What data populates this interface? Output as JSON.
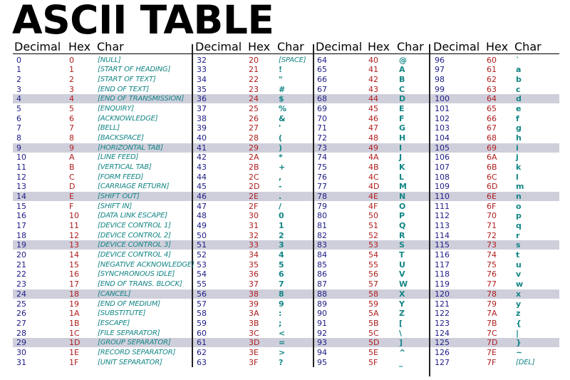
{
  "title": "ASCII TABLE",
  "headers": {
    "decimal": "Decimal",
    "hex": "Hex",
    "char": "Char"
  },
  "colors": {
    "decimal": "#1c1c86",
    "hex": "#b01c1c",
    "char": "#138585",
    "highlight": "#cfcfdc"
  },
  "columns": [
    {
      "rows": [
        [
          "0",
          "0",
          "[NULL]"
        ],
        [
          "1",
          "1",
          "[START OF HEADING]"
        ],
        [
          "2",
          "2",
          "[START OF TEXT]"
        ],
        [
          "3",
          "3",
          "[END OF TEXT]"
        ],
        [
          "4",
          "4",
          "[END OF TRANSMISSION]"
        ],
        [
          "5",
          "5",
          "[ENQUIRY]"
        ],
        [
          "6",
          "6",
          "[ACKNOWLEDGE]"
        ],
        [
          "7",
          "7",
          "[BELL]"
        ],
        [
          "8",
          "8",
          "[BACKSPACE]"
        ],
        [
          "9",
          "9",
          "[HORIZONTAL TAB]"
        ],
        [
          "10",
          "A",
          "[LINE FEED]"
        ],
        [
          "11",
          "B",
          "[VERTICAL TAB]"
        ],
        [
          "12",
          "C",
          "[FORM FEED]"
        ],
        [
          "13",
          "D",
          "[CARRIAGE RETURN]"
        ],
        [
          "14",
          "E",
          "[SHIFT OUT]"
        ],
        [
          "15",
          "F",
          "[SHIFT IN]"
        ],
        [
          "16",
          "10",
          "[DATA LINK ESCAPE]"
        ],
        [
          "17",
          "11",
          "[DEVICE CONTROL 1]"
        ],
        [
          "18",
          "12",
          "[DEVICE CONTROL 2]"
        ],
        [
          "19",
          "13",
          "[DEVICE CONTROL 3]"
        ],
        [
          "20",
          "14",
          "[DEVICE CONTROL 4]"
        ],
        [
          "21",
          "15",
          "[NEGATIVE ACKNOWLEDGE]"
        ],
        [
          "22",
          "16",
          "[SYNCHRONOUS IDLE]"
        ],
        [
          "23",
          "17",
          "[END OF TRANS. BLOCK]"
        ],
        [
          "24",
          "18",
          "[CANCEL]"
        ],
        [
          "25",
          "19",
          "[END OF MEDIUM]"
        ],
        [
          "26",
          "1A",
          "[SUBSTITUTE]"
        ],
        [
          "27",
          "1B",
          "[ESCAPE]"
        ],
        [
          "28",
          "1C",
          "[FILE SEPARATOR]"
        ],
        [
          "29",
          "1D",
          "[GROUP SEPARATOR]"
        ],
        [
          "30",
          "1E",
          "[RECORD SEPARATOR]"
        ],
        [
          "31",
          "1F",
          "[UNIT SEPARATOR]"
        ]
      ]
    },
    {
      "rows": [
        [
          "32",
          "20",
          "[SPACE]"
        ],
        [
          "33",
          "21",
          "!"
        ],
        [
          "34",
          "22",
          "\""
        ],
        [
          "35",
          "23",
          "#"
        ],
        [
          "36",
          "24",
          "$"
        ],
        [
          "37",
          "25",
          "%"
        ],
        [
          "38",
          "26",
          "&"
        ],
        [
          "39",
          "27",
          "'"
        ],
        [
          "40",
          "28",
          "("
        ],
        [
          "41",
          "29",
          ")"
        ],
        [
          "42",
          "2A",
          "*"
        ],
        [
          "43",
          "2B",
          "+"
        ],
        [
          "44",
          "2C",
          ","
        ],
        [
          "45",
          "2D",
          "-"
        ],
        [
          "46",
          "2E",
          "."
        ],
        [
          "47",
          "2F",
          "/"
        ],
        [
          "48",
          "30",
          "0"
        ],
        [
          "49",
          "31",
          "1"
        ],
        [
          "50",
          "32",
          "2"
        ],
        [
          "51",
          "33",
          "3"
        ],
        [
          "52",
          "34",
          "4"
        ],
        [
          "53",
          "35",
          "5"
        ],
        [
          "54",
          "36",
          "6"
        ],
        [
          "55",
          "37",
          "7"
        ],
        [
          "56",
          "38",
          "8"
        ],
        [
          "57",
          "39",
          "9"
        ],
        [
          "58",
          "3A",
          ":"
        ],
        [
          "59",
          "3B",
          ";"
        ],
        [
          "60",
          "3C",
          "<"
        ],
        [
          "61",
          "3D",
          "="
        ],
        [
          "62",
          "3E",
          ">"
        ],
        [
          "63",
          "3F",
          "?"
        ]
      ]
    },
    {
      "rows": [
        [
          "64",
          "40",
          "@"
        ],
        [
          "65",
          "41",
          "A"
        ],
        [
          "66",
          "42",
          "B"
        ],
        [
          "67",
          "43",
          "C"
        ],
        [
          "68",
          "44",
          "D"
        ],
        [
          "69",
          "45",
          "E"
        ],
        [
          "70",
          "46",
          "F"
        ],
        [
          "71",
          "47",
          "G"
        ],
        [
          "72",
          "48",
          "H"
        ],
        [
          "73",
          "49",
          "I"
        ],
        [
          "74",
          "4A",
          "J"
        ],
        [
          "75",
          "4B",
          "K"
        ],
        [
          "76",
          "4C",
          "L"
        ],
        [
          "77",
          "4D",
          "M"
        ],
        [
          "78",
          "4E",
          "N"
        ],
        [
          "79",
          "4F",
          "O"
        ],
        [
          "80",
          "50",
          "P"
        ],
        [
          "81",
          "51",
          "Q"
        ],
        [
          "82",
          "52",
          "R"
        ],
        [
          "83",
          "53",
          "S"
        ],
        [
          "84",
          "54",
          "T"
        ],
        [
          "85",
          "55",
          "U"
        ],
        [
          "86",
          "56",
          "V"
        ],
        [
          "87",
          "57",
          "W"
        ],
        [
          "88",
          "58",
          "X"
        ],
        [
          "89",
          "59",
          "Y"
        ],
        [
          "90",
          "5A",
          "Z"
        ],
        [
          "91",
          "5B",
          "["
        ],
        [
          "92",
          "5C",
          "\\"
        ],
        [
          "93",
          "5D",
          "]"
        ],
        [
          "94",
          "5E",
          "^"
        ],
        [
          "95",
          "5F",
          "_"
        ]
      ]
    },
    {
      "rows": [
        [
          "96",
          "60",
          "`"
        ],
        [
          "97",
          "61",
          "a"
        ],
        [
          "98",
          "62",
          "b"
        ],
        [
          "99",
          "63",
          "c"
        ],
        [
          "100",
          "64",
          "d"
        ],
        [
          "101",
          "65",
          "e"
        ],
        [
          "102",
          "66",
          "f"
        ],
        [
          "103",
          "67",
          "g"
        ],
        [
          "104",
          "68",
          "h"
        ],
        [
          "105",
          "69",
          "i"
        ],
        [
          "106",
          "6A",
          "j"
        ],
        [
          "107",
          "6B",
          "k"
        ],
        [
          "108",
          "6C",
          "l"
        ],
        [
          "109",
          "6D",
          "m"
        ],
        [
          "110",
          "6E",
          "n"
        ],
        [
          "111",
          "6F",
          "o"
        ],
        [
          "112",
          "70",
          "p"
        ],
        [
          "113",
          "71",
          "q"
        ],
        [
          "114",
          "72",
          "r"
        ],
        [
          "115",
          "73",
          "s"
        ],
        [
          "116",
          "74",
          "t"
        ],
        [
          "117",
          "75",
          "u"
        ],
        [
          "118",
          "76",
          "v"
        ],
        [
          "119",
          "77",
          "w"
        ],
        [
          "120",
          "78",
          "x"
        ],
        [
          "121",
          "79",
          "y"
        ],
        [
          "122",
          "7A",
          "z"
        ],
        [
          "123",
          "7B",
          "{"
        ],
        [
          "124",
          "7C",
          "|"
        ],
        [
          "125",
          "7D",
          "}"
        ],
        [
          "126",
          "7E",
          "~"
        ],
        [
          "127",
          "7F",
          "[DEL]"
        ]
      ]
    }
  ]
}
